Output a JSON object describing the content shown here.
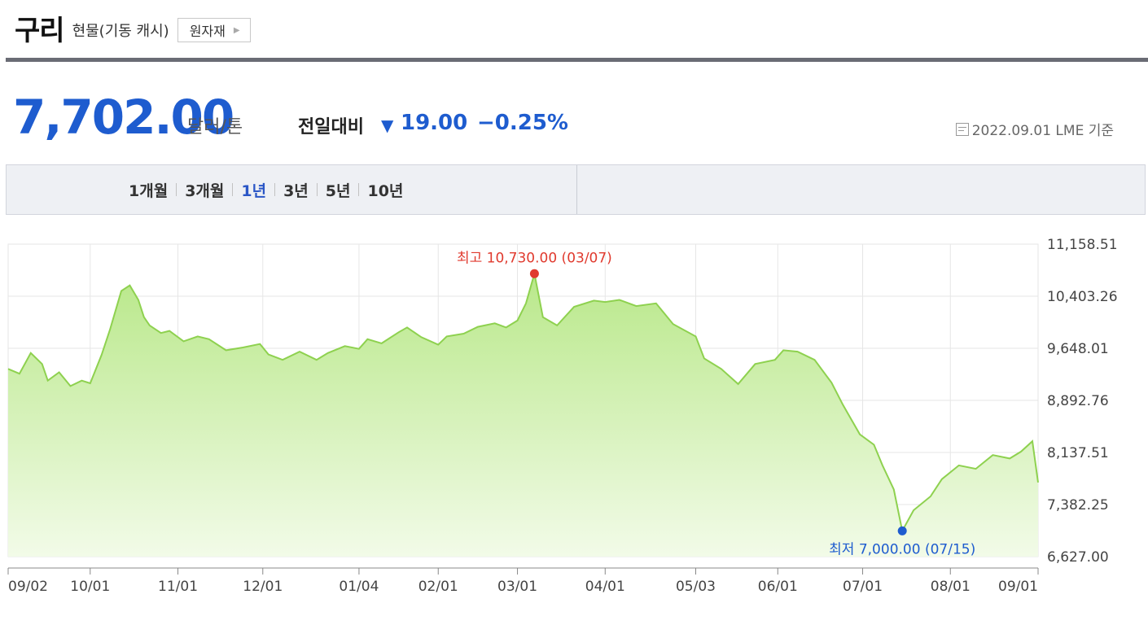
{
  "header": {
    "name": "구리",
    "subtitle": "현물(기동 캐시)",
    "category_button": "원자재"
  },
  "quote": {
    "price": "7,702.00",
    "unit": "달러/톤",
    "compare_label": "전일대비",
    "change_direction": "down",
    "change_value": "19.00",
    "change_percent": "−0.25%",
    "as_of": "2022.09.01 LME 기준"
  },
  "periods": {
    "items": [
      {
        "label": "1개월",
        "active": false
      },
      {
        "label": "3개월",
        "active": false
      },
      {
        "label": "1년",
        "active": true
      },
      {
        "label": "3년",
        "active": false
      },
      {
        "label": "5년",
        "active": false
      },
      {
        "label": "10년",
        "active": false
      }
    ]
  },
  "colors": {
    "accent": "#1e5ccf",
    "line": "#8ed14f",
    "high": "#e03a2e",
    "low": "#1e5ccf",
    "header_bar": "#6a6c75"
  },
  "chart_data": {
    "type": "area",
    "x_labels": [
      "09/02",
      "10/01",
      "11/01",
      "12/01",
      "01/04",
      "02/01",
      "03/01",
      "04/01",
      "05/03",
      "06/01",
      "07/01",
      "08/01",
      "09/01"
    ],
    "y_ticks": [
      "11,158.51",
      "10,403.26",
      "9,648.01",
      "8,892.76",
      "8,137.51",
      "7,382.25",
      "6,627.00"
    ],
    "ylim": [
      6627.0,
      11158.51
    ],
    "grid": true,
    "x": [
      "2021-09-02",
      "2021-09-06",
      "2021-09-10",
      "2021-09-14",
      "2021-09-16",
      "2021-09-20",
      "2021-09-24",
      "2021-09-28",
      "2021-10-01",
      "2021-10-05",
      "2021-10-08",
      "2021-10-12",
      "2021-10-15",
      "2021-10-18",
      "2021-10-20",
      "2021-10-22",
      "2021-10-26",
      "2021-10-29",
      "2021-11-03",
      "2021-11-08",
      "2021-11-12",
      "2021-11-18",
      "2021-11-24",
      "2021-11-30",
      "2021-12-03",
      "2021-12-08",
      "2021-12-14",
      "2021-12-20",
      "2021-12-24",
      "2021-12-30",
      "2022-01-04",
      "2022-01-07",
      "2022-01-12",
      "2022-01-18",
      "2022-01-21",
      "2022-01-26",
      "2022-02-01",
      "2022-02-04",
      "2022-02-10",
      "2022-02-15",
      "2022-02-21",
      "2022-02-25",
      "2022-03-01",
      "2022-03-04",
      "2022-03-07",
      "2022-03-10",
      "2022-03-15",
      "2022-03-21",
      "2022-03-28",
      "2022-04-01",
      "2022-04-06",
      "2022-04-12",
      "2022-04-19",
      "2022-04-25",
      "2022-05-03",
      "2022-05-06",
      "2022-05-12",
      "2022-05-18",
      "2022-05-24",
      "2022-05-31",
      "2022-06-03",
      "2022-06-08",
      "2022-06-14",
      "2022-06-20",
      "2022-06-24",
      "2022-06-30",
      "2022-07-05",
      "2022-07-08",
      "2022-07-12",
      "2022-07-15",
      "2022-07-19",
      "2022-07-25",
      "2022-07-29",
      "2022-08-04",
      "2022-08-10",
      "2022-08-16",
      "2022-08-22",
      "2022-08-26",
      "2022-08-30",
      "2022-09-01"
    ],
    "series": [
      {
        "values": [
          9350,
          9280,
          9580,
          9420,
          9180,
          9300,
          9100,
          9180,
          9140,
          9550,
          9920,
          10480,
          10560,
          10350,
          10100,
          9980,
          9870,
          9900,
          9750,
          9820,
          9780,
          9620,
          9660,
          9710,
          9560,
          9480,
          9600,
          9480,
          9580,
          9680,
          9640,
          9780,
          9720,
          9880,
          9950,
          9810,
          9700,
          9820,
          9860,
          9960,
          10010,
          9950,
          10050,
          10300,
          10730,
          10100,
          9980,
          10250,
          10340,
          10320,
          10350,
          10260,
          10300,
          10000,
          9820,
          9500,
          9350,
          9130,
          9420,
          9480,
          9620,
          9600,
          9480,
          9150,
          8830,
          8400,
          8250,
          7950,
          7600,
          7000,
          7300,
          7500,
          7750,
          7950,
          7900,
          8100,
          8050,
          8150,
          8300,
          7702
        ]
      }
    ],
    "annotations": {
      "high": {
        "label": "최고 10,730.00 (03/07)",
        "date": "2022-03-07",
        "value": 10730.0
      },
      "low": {
        "label": "최저 7,000.00 (07/15)",
        "date": "2022-07-15",
        "value": 7000.0
      }
    }
  }
}
